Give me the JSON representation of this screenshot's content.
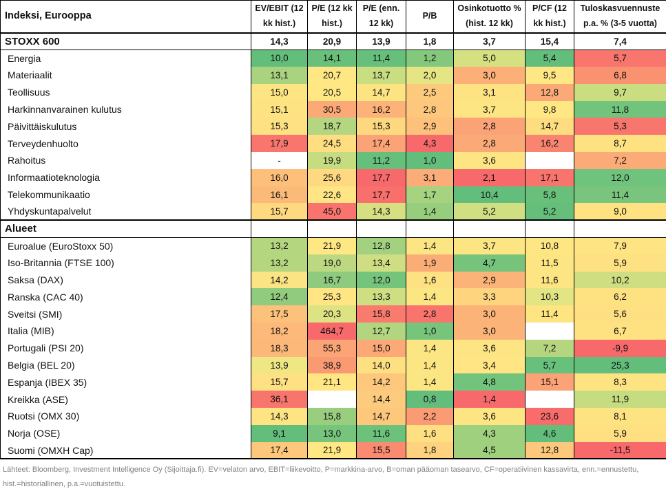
{
  "title": "Indeksi, Eurooppa",
  "chart_data": {
    "type": "table",
    "title": "Indeksi, Eurooppa",
    "legend_note": "heatmap conditional formatting per column",
    "heatmap_colors": {
      "low": "#F8696B",
      "mid": "#FFEB84",
      "high": "#63BE7B",
      "empty": "#FFFFFF"
    },
    "columns": [
      "EV/EBIT (12 kk hist.)",
      "P/E (12 kk hist.)",
      "P/E (enn. 12 kk)",
      "P/B",
      "Osinkotuotto % (hist. 12 kk)",
      "P/CF (12 kk hist.)",
      "Tuloskasvuennuste p.a. % (3-5 vuotta)"
    ],
    "rows": [
      {
        "label": "STOXX 600",
        "style": "summary",
        "values": [
          "14,3",
          "20,9",
          "13,9",
          "1,8",
          "3,7",
          "15,4",
          "7,4"
        ],
        "colors": [
          "#FFFFFF",
          "#FFFFFF",
          "#FFFFFF",
          "#FFFFFF",
          "#FFFFFF",
          "#FFFFFF",
          "#FFFFFF"
        ]
      },
      {
        "label": "Energia",
        "style": "normal",
        "values": [
          "10,0",
          "14,1",
          "11,4",
          "1,2",
          "5,0",
          "5,4",
          "5,7"
        ],
        "colors": [
          "#63BE7B",
          "#68C07B",
          "#66BF7B",
          "#84C87D",
          "#D5E081",
          "#63BE7B",
          "#F8766D"
        ]
      },
      {
        "label": "Materiaalit",
        "style": "normal",
        "values": [
          "13,1",
          "20,7",
          "13,7",
          "2,0",
          "3,0",
          "9,5",
          "6,8"
        ],
        "colors": [
          "#A9D37F",
          "#FFE884",
          "#C9DD81",
          "#E6E583",
          "#FCAF77",
          "#FFE784",
          "#FA9272"
        ]
      },
      {
        "label": "Teollisuus",
        "style": "normal",
        "values": [
          "15,0",
          "20,5",
          "14,7",
          "2,5",
          "3,1",
          "12,8",
          "9,7"
        ],
        "colors": [
          "#FEE583",
          "#FFE884",
          "#FDE482",
          "#FDC97D",
          "#FEE383",
          "#FBAA77",
          "#CADD81"
        ]
      },
      {
        "label": "Harkinnanvarainen kulutus",
        "style": "normal",
        "values": [
          "15,1",
          "30,5",
          "16,2",
          "2,8",
          "3,7",
          "9,8",
          "11,8"
        ],
        "colors": [
          "#FEE383",
          "#FBA977",
          "#FCB278",
          "#FDC87D",
          "#FEE583",
          "#FFE884",
          "#72C47C"
        ]
      },
      {
        "label": "Päivittäiskulutus",
        "style": "normal",
        "values": [
          "15,3",
          "18,7",
          "15,3",
          "2,9",
          "2,8",
          "14,7",
          "5,3"
        ],
        "colors": [
          "#FEE182",
          "#B5D680",
          "#FED87F",
          "#FDC17B",
          "#FBA376",
          "#FEDC80",
          "#F8766D"
        ]
      },
      {
        "label": "Terveydenhuolto",
        "style": "normal",
        "values": [
          "17,9",
          "24,5",
          "17,4",
          "4,3",
          "2,8",
          "16,2",
          "8,7"
        ],
        "colors": [
          "#F8766E",
          "#FFDD81",
          "#FBA276",
          "#F8696B",
          "#FBAA77",
          "#F98470",
          "#FEE282"
        ]
      },
      {
        "label": "Rahoitus",
        "style": "normal",
        "values": [
          "-",
          "19,9",
          "11,2",
          "1,0",
          "3,6",
          "",
          "7,2"
        ],
        "colors": [
          "#FFFFFF",
          "#C6DC81",
          "#66BF7B",
          "#63BE7B",
          "#FEE583",
          "#FFFFFF",
          "#FBAB77"
        ]
      },
      {
        "label": "Informaatioteknologia",
        "style": "normal",
        "values": [
          "16,0",
          "25,6",
          "17,7",
          "3,1",
          "2,1",
          "17,1",
          "12,0"
        ],
        "colors": [
          "#FDBF7A",
          "#FFD981",
          "#F8696B",
          "#FBAC78",
          "#F8696B",
          "#F8746D",
          "#70C37C"
        ]
      },
      {
        "label": "Telekommunikaatio",
        "style": "normal",
        "values": [
          "16,1",
          "22,6",
          "17,7",
          "1,7",
          "10,4",
          "5,8",
          "11,4"
        ],
        "colors": [
          "#FCBA79",
          "#FFE583",
          "#F86F6C",
          "#A5D37F",
          "#63BE7B",
          "#68C07B",
          "#79C57D"
        ]
      },
      {
        "label": "Yhdyskuntapalvelut",
        "style": "normal",
        "values": [
          "15,7",
          "45,0",
          "14,3",
          "1,4",
          "5,2",
          "5,2",
          "9,0"
        ],
        "colors": [
          "#FFD980",
          "#F8746D",
          "#D6E082",
          "#97CE7E",
          "#D0DF81",
          "#65BF7B",
          "#FFE382"
        ]
      },
      {
        "label": "Alueet",
        "style": "section",
        "values": [
          "",
          "",
          "",
          "",
          "",
          "",
          ""
        ],
        "colors": [
          "#FFFFFF",
          "#FFFFFF",
          "#FFFFFF",
          "#FFFFFF",
          "#FFFFFF",
          "#FFFFFF",
          "#FFFFFF"
        ]
      },
      {
        "label": "Euroalue (EuroStoxx 50)",
        "style": "normal",
        "values": [
          "13,2",
          "21,9",
          "12,8",
          "1,4",
          "3,7",
          "10,8",
          "7,9"
        ],
        "colors": [
          "#B4D67F",
          "#FFE784",
          "#A2D17F",
          "#FCE583",
          "#FEE583",
          "#FEE682",
          "#FEE482"
        ]
      },
      {
        "label": "Iso-Britannia (FTSE 100)",
        "style": "normal",
        "values": [
          "13,2",
          "19,0",
          "13,4",
          "1,9",
          "4,7",
          "11,5",
          "5,9"
        ],
        "colors": [
          "#B4D67F",
          "#BCD880",
          "#CFDE82",
          "#FBAD78",
          "#76C47C",
          "#FEE583",
          "#FEE182"
        ]
      },
      {
        "label": "Saksa (DAX)",
        "style": "normal",
        "values": [
          "14,2",
          "16,7",
          "12,0",
          "1,6",
          "2,9",
          "11,6",
          "10,2"
        ],
        "colors": [
          "#FBE483",
          "#8FCB7E",
          "#75C47C",
          "#FDE182",
          "#FCB377",
          "#FEE583",
          "#CFDE81"
        ]
      },
      {
        "label": "Ranska (CAC 40)",
        "style": "normal",
        "values": [
          "12,4",
          "25,3",
          "13,3",
          "1,4",
          "3,3",
          "10,3",
          "6,2"
        ],
        "colors": [
          "#90CB7E",
          "#FFE583",
          "#CEDE82",
          "#FCE583",
          "#FED47F",
          "#E3E483",
          "#FEE282"
        ]
      },
      {
        "label": "Sveitsi (SMI)",
        "style": "normal",
        "values": [
          "17,5",
          "20,3",
          "15,8",
          "2,8",
          "3,0",
          "11,4",
          "5,6"
        ],
        "colors": [
          "#FCC17B",
          "#DDE282",
          "#F87B6E",
          "#F8746D",
          "#FCB377",
          "#FEE582",
          "#FEE082"
        ]
      },
      {
        "label": "Italia (MIB)",
        "style": "normal",
        "values": [
          "18,2",
          "464,7",
          "12,7",
          "1,0",
          "3,0",
          "",
          "6,7"
        ],
        "colors": [
          "#FCB979",
          "#F8696B",
          "#B2D580",
          "#77C57C",
          "#FCB377",
          "#FFFFFF",
          "#FEE282"
        ]
      },
      {
        "label": "Portugali (PSI 20)",
        "style": "normal",
        "values": [
          "18,3",
          "55,3",
          "15,0",
          "1,4",
          "3,6",
          "7,2",
          "-9,9"
        ],
        "colors": [
          "#FCB879",
          "#FBA476",
          "#FCA977",
          "#FCE583",
          "#FEE583",
          "#B5D67F",
          "#F8696B"
        ]
      },
      {
        "label": "Belgia (BEL 20)",
        "style": "normal",
        "values": [
          "13,9",
          "38,9",
          "14,0",
          "1,4",
          "3,4",
          "5,7",
          "25,3"
        ],
        "colors": [
          "#EFE784",
          "#FA9A73",
          "#FEDF81",
          "#FCE583",
          "#FFE583",
          "#67C07B",
          "#63BE7B"
        ]
      },
      {
        "label": "Espanja (IBEX 35)",
        "style": "normal",
        "values": [
          "15,7",
          "21,1",
          "14,2",
          "1,4",
          "4,8",
          "15,1",
          "8,3"
        ],
        "colors": [
          "#FEE182",
          "#FFE683",
          "#FDC77C",
          "#FCE583",
          "#72C37C",
          "#FBA376",
          "#FEE382"
        ]
      },
      {
        "label": "Kreikka (ASE)",
        "style": "normal",
        "values": [
          "36,1",
          "",
          "14,4",
          "0,8",
          "1,4",
          "",
          "11,9"
        ],
        "colors": [
          "#F8756D",
          "#FFFFFF",
          "#FDCB7D",
          "#63BE7B",
          "#F8696B",
          "#FFFFFF",
          "#C6DC81"
        ]
      },
      {
        "label": "Ruotsi (OMX 30)",
        "style": "normal",
        "values": [
          "14,3",
          "15,8",
          "14,7",
          "2,2",
          "3,6",
          "23,6",
          "8,1"
        ],
        "colors": [
          "#FEE483",
          "#98CE7E",
          "#FDC77C",
          "#FA9B73",
          "#FEE583",
          "#F86D6C",
          "#FEE383"
        ]
      },
      {
        "label": "Norja (OSE)",
        "style": "normal",
        "values": [
          "9,1",
          "13,0",
          "11,6",
          "1,6",
          "4,3",
          "4,6",
          "5,9"
        ],
        "colors": [
          "#63BE7B",
          "#77C57C",
          "#6CC27B",
          "#FEDF81",
          "#9ED07E",
          "#63BE7B",
          "#FEDF81"
        ]
      },
      {
        "label": "Suomi (OMXH Cap)",
        "style": "normal",
        "values": [
          "17,4",
          "21,9",
          "15,5",
          "1,8",
          "4,5",
          "12,8",
          "-11,5"
        ],
        "colors": [
          "#FDC77C",
          "#FFE784",
          "#FA8A70",
          "#FED27E",
          "#9ED07E",
          "#FDC77C",
          "#F8696B"
        ]
      }
    ]
  },
  "footer": {
    "text": "Lähteet: Bloomberg, Investment Intelligence Oy (Sijoittaja.fi). EV=velaton arvo, EBIT=liikevoitto, P=markkina-arvo, B=oman pääoman tasearvo, CF=operatiivinen kassavirta, enn.=ennustettu, hist.=historiallinen, p.a.=vuotuistettu."
  }
}
